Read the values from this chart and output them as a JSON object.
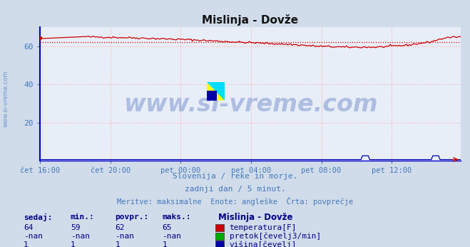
{
  "title": "Mislinja - Dovže",
  "bg_color": "#d0dcea",
  "plot_bg_color": "#e8eef8",
  "grid_color": "#ff9999",
  "grid_linestyle": ":",
  "x_ticks_labels": [
    "čet 16:00",
    "čet 20:00",
    "pet 00:00",
    "pet 04:00",
    "pet 08:00",
    "pet 12:00"
  ],
  "x_ticks_pos": [
    0,
    48,
    96,
    144,
    192,
    240
  ],
  "total_points": 288,
  "ylim": [
    0,
    70
  ],
  "yticks": [
    20,
    40,
    60
  ],
  "temp_color": "#cc0000",
  "avg_line_color": "#cc0000",
  "avg_value": 62,
  "flow_color": "#00aa00",
  "height_color": "#0000aa",
  "watermark_text": "www.si-vreme.com",
  "watermark_color": "#4466bb",
  "watermark_alpha": 0.35,
  "watermark_fontsize": 24,
  "logo_yellow": "#ffff00",
  "logo_cyan": "#00ddff",
  "logo_navy": "#0000aa",
  "subtitle1": "Slovenija / reke in morje.",
  "subtitle2": "zadnji dan / 5 minut.",
  "subtitle3": "Meritve: maksimalne  Enote: angleške  Črta: povprečje",
  "subtitle_color": "#4477bb",
  "table_color": "#000088",
  "table_headers": [
    "sedaj:",
    "min.:",
    "povpr.:",
    "maks.:"
  ],
  "legend_title": "Mislinja - Dovže",
  "legend_items": [
    {
      "label": "temperatura[F]",
      "color": "#cc0000"
    },
    {
      "label": "pretok[čevelj3/min]",
      "color": "#00aa00"
    },
    {
      "label": "višina[čevelj]",
      "color": "#0000aa"
    }
  ],
  "legend_values": [
    {
      "sedaj": "64",
      "min": "59",
      "povpr": "62",
      "maks": "65"
    },
    {
      "sedaj": "-nan",
      "min": "-nan",
      "povpr": "-nan",
      "maks": "-nan"
    },
    {
      "sedaj": "1",
      "min": "1",
      "povpr": "1",
      "maks": "1"
    }
  ],
  "left_watermark": "www.si-vreme.com",
  "left_watermark_color": "#4477bb",
  "tick_color": "#4477bb",
  "spine_color": "#0000cc"
}
